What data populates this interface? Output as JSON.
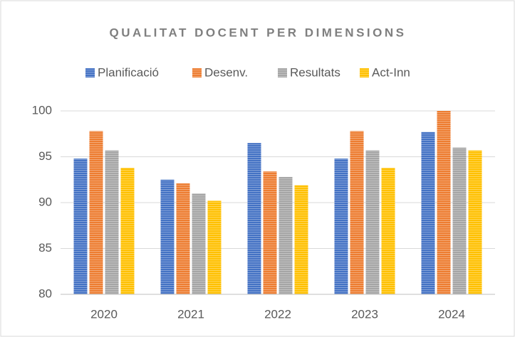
{
  "chart_data": {
    "type": "bar",
    "title": "QUALITAT DOCENT PER DIMENSIONS",
    "categories": [
      "2020",
      "2021",
      "2022",
      "2023",
      "2024"
    ],
    "series": [
      {
        "name": "Planificació",
        "color": "#4472c4",
        "values": [
          94.8,
          92.5,
          96.5,
          94.8,
          97.7
        ]
      },
      {
        "name": "Desenv.",
        "color": "#ed7d31",
        "values": [
          97.8,
          92.1,
          93.4,
          97.8,
          100
        ]
      },
      {
        "name": "Resultats",
        "color": "#a5a5a5",
        "values": [
          95.7,
          91.0,
          92.8,
          95.7,
          96.0
        ]
      },
      {
        "name": "Act-Inn",
        "color": "#ffc000",
        "values": [
          93.8,
          90.2,
          91.9,
          93.8,
          95.7
        ]
      }
    ],
    "ylim": [
      80,
      100
    ],
    "yticks": [
      80,
      85,
      90,
      95,
      100
    ],
    "grid": true,
    "legend": "top"
  }
}
